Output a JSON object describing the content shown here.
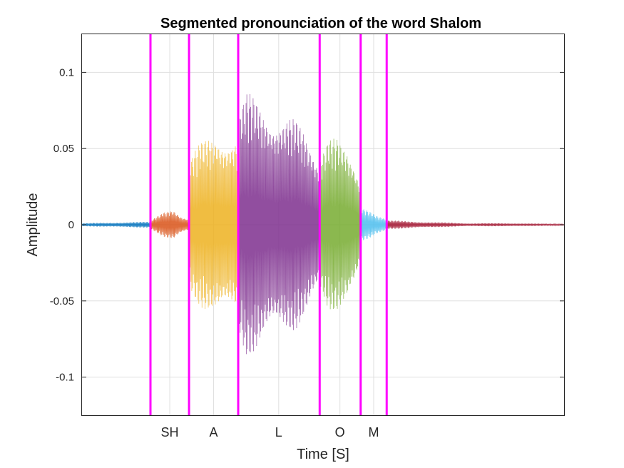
{
  "chart_data": {
    "type": "line",
    "title": "Segmented pronounciation of the word Shalom",
    "xlabel": "Time [S]",
    "ylabel": "Amplitude",
    "ylim": [
      -0.125,
      0.125
    ],
    "xlim": [
      0,
      1
    ],
    "grid": true,
    "yticks": [
      {
        "value": -0.1,
        "label": "-0.1"
      },
      {
        "value": -0.05,
        "label": "-0.05"
      },
      {
        "value": 0,
        "label": "0"
      },
      {
        "value": 0.05,
        "label": "0.05"
      },
      {
        "value": 0.1,
        "label": "0.1"
      }
    ],
    "segment_boundaries": [
      0.142,
      0.222,
      0.324,
      0.493,
      0.578,
      0.632
    ],
    "boundary_color": "#FF00FF",
    "series": [
      {
        "color": "#0072BD",
        "x_range": [
          0.0,
          0.142
        ],
        "envelope": [
          [
            0.0,
            0.001
          ],
          [
            0.142,
            0.002
          ]
        ]
      },
      {
        "color": "#D95319",
        "x_range": [
          0.142,
          0.222
        ],
        "envelope": [
          [
            0.142,
            0.003
          ],
          [
            0.17,
            0.008
          ],
          [
            0.19,
            0.01
          ],
          [
            0.205,
            0.006
          ],
          [
            0.222,
            0.004
          ]
        ]
      },
      {
        "color": "#EDB120",
        "x_range": [
          0.222,
          0.324
        ],
        "envelope": [
          [
            0.222,
            0.045
          ],
          [
            0.24,
            0.052
          ],
          [
            0.26,
            0.058
          ],
          [
            0.28,
            0.064
          ],
          [
            0.3,
            0.061
          ],
          [
            0.324,
            0.058
          ]
        ]
      },
      {
        "color": "#7E2F8E",
        "x_range": [
          0.324,
          0.493
        ],
        "envelope": [
          [
            0.324,
            0.075
          ],
          [
            0.34,
            0.087
          ],
          [
            0.36,
            0.084
          ],
          [
            0.38,
            0.08
          ],
          [
            0.4,
            0.076
          ],
          [
            0.42,
            0.074
          ],
          [
            0.44,
            0.07
          ],
          [
            0.46,
            0.062
          ],
          [
            0.48,
            0.052
          ],
          [
            0.493,
            0.045
          ]
        ]
      },
      {
        "color": "#77AC30",
        "x_range": [
          0.493,
          0.578
        ],
        "envelope": [
          [
            0.493,
            0.045
          ],
          [
            0.51,
            0.055
          ],
          [
            0.53,
            0.058
          ],
          [
            0.55,
            0.055
          ],
          [
            0.565,
            0.045
          ],
          [
            0.578,
            0.03
          ]
        ]
      },
      {
        "color": "#4DBEEE",
        "x_range": [
          0.578,
          0.632
        ],
        "envelope": [
          [
            0.578,
            0.012
          ],
          [
            0.59,
            0.01
          ],
          [
            0.61,
            0.006
          ],
          [
            0.632,
            0.004
          ]
        ]
      },
      {
        "color": "#A2142F",
        "x_range": [
          0.632,
          1.0
        ],
        "envelope": [
          [
            0.632,
            0.003
          ],
          [
            0.7,
            0.002
          ],
          [
            0.8,
            0.001
          ],
          [
            0.9,
            0.001
          ],
          [
            1.0,
            0.0005
          ]
        ]
      }
    ],
    "segment_labels": [
      {
        "text": "SH",
        "x": 0.182
      },
      {
        "text": "A",
        "x": 0.273
      },
      {
        "text": "L",
        "x": 0.408
      },
      {
        "text": "O",
        "x": 0.535
      },
      {
        "text": "M",
        "x": 0.605
      }
    ]
  }
}
